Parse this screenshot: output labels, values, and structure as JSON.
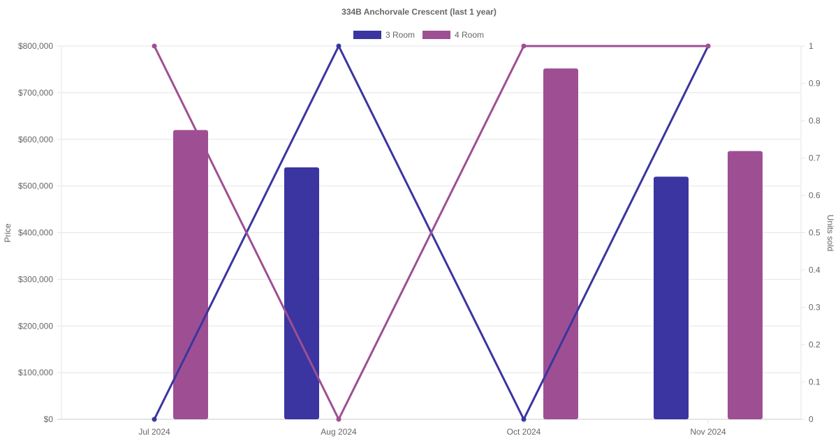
{
  "chart_data": {
    "type": "bar",
    "title": "334B Anchorvale Crescent (last 1 year)",
    "categories": [
      "Jul 2024",
      "Aug 2024",
      "Oct 2024",
      "Nov 2024"
    ],
    "ylabel": "Price",
    "y2label": "Units sold",
    "ylim": [
      0,
      800000
    ],
    "y2lim": [
      0,
      1
    ],
    "yticks": [
      "$0",
      "$100,000",
      "$200,000",
      "$300,000",
      "$400,000",
      "$500,000",
      "$600,000",
      "$700,000",
      "$800,000"
    ],
    "y2ticks": [
      "0",
      "0.1",
      "0.2",
      "0.3",
      "0.4",
      "0.5",
      "0.6",
      "0.7",
      "0.8",
      "0.9",
      "1"
    ],
    "legend_position": "top-center",
    "grid": true,
    "series": [
      {
        "name": "3 Room",
        "color": "#3a35a0",
        "price": [
          null,
          540000,
          null,
          520000
        ],
        "units_sold": [
          0,
          1,
          0,
          1
        ]
      },
      {
        "name": "4 Room",
        "color": "#9e4f93",
        "price": [
          620000,
          null,
          752000,
          575000
        ],
        "units_sold": [
          1,
          0,
          1,
          1
        ]
      }
    ]
  }
}
